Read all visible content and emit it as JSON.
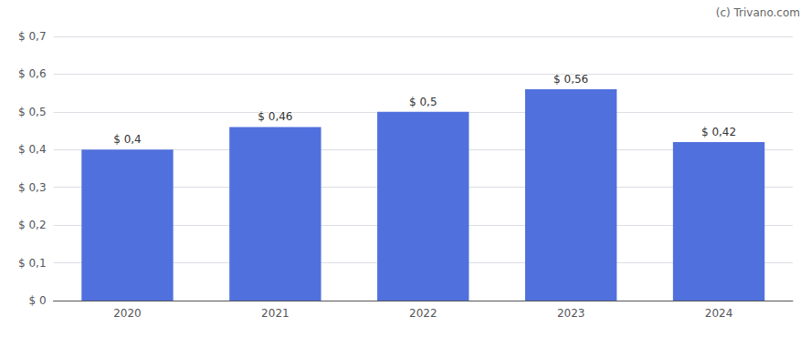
{
  "chart_data": {
    "type": "bar",
    "categories": [
      "2020",
      "2021",
      "2022",
      "2023",
      "2024"
    ],
    "values": [
      0.4,
      0.46,
      0.5,
      0.56,
      0.42
    ],
    "value_labels": [
      "$ 0,4",
      "$ 0,46",
      "$ 0,5",
      "$ 0,56",
      "$ 0,42"
    ],
    "data_labels": true,
    "ylim": [
      0,
      0.7
    ],
    "yticks": [
      {
        "value": 0,
        "label": "$ 0"
      },
      {
        "value": 0.1,
        "label": "$ 0,1"
      },
      {
        "value": 0.2,
        "label": "$ 0,2"
      },
      {
        "value": 0.3,
        "label": "$ 0,3"
      },
      {
        "value": 0.4,
        "label": "$ 0,4"
      },
      {
        "value": 0.5,
        "label": "$ 0,5"
      },
      {
        "value": 0.6,
        "label": "$ 0,6"
      },
      {
        "value": 0.7,
        "label": "$ 0,7"
      }
    ],
    "grid": true,
    "annotations": [
      "(c) Trivano.com"
    ]
  }
}
